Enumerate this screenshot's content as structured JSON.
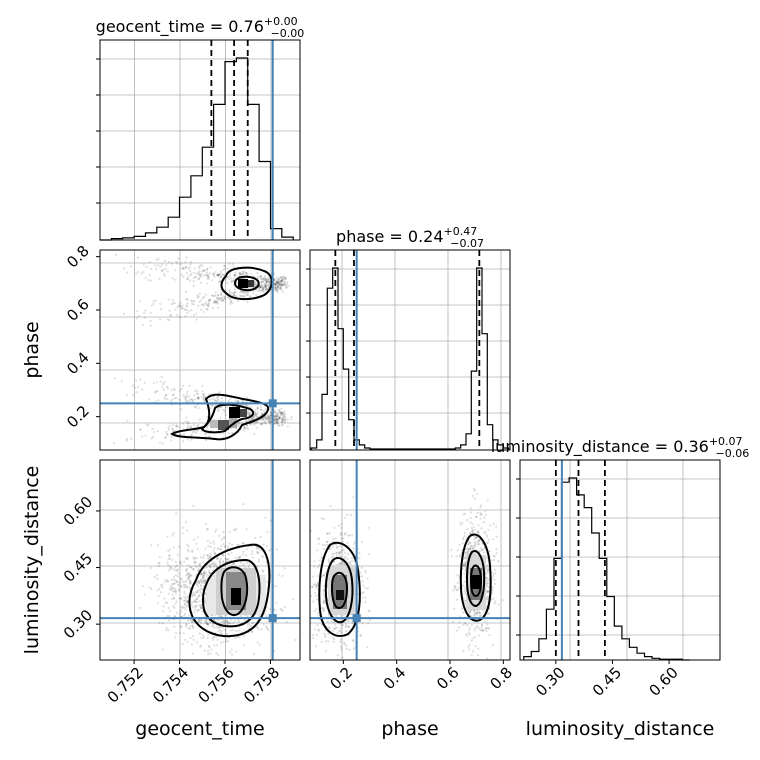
{
  "chart_data": {
    "type": "corner",
    "parameters": [
      "geocent_time",
      "phase",
      "luminosity_distance"
    ],
    "ranges": {
      "geocent_time": [
        0.7505,
        0.7593
      ],
      "phase": [
        0.075,
        0.825
      ],
      "luminosity_distance": [
        0.205,
        0.735
      ]
    },
    "ticks": {
      "geocent_time": [
        "0.752",
        "0.754",
        "0.756",
        "0.758"
      ],
      "phase": [
        "0.2",
        "0.4",
        "0.6",
        "0.8"
      ],
      "luminosity_distance": [
        "0.30",
        "0.45",
        "0.60"
      ]
    },
    "titles": {
      "geocent_time": {
        "name": "geocent_time",
        "median": "0.76",
        "plus": "+0.00",
        "minus": "−0.00"
      },
      "phase": {
        "name": "phase",
        "median": "0.24",
        "plus": "+0.47",
        "minus": "−0.07"
      },
      "luminosity_distance": {
        "name": "luminosity_distance",
        "median": "0.36",
        "plus": "+0.07",
        "minus": "−0.06"
      }
    },
    "truths": {
      "geocent_time": 0.7581,
      "phase": 0.25,
      "luminosity_distance": 0.316
    },
    "quantiles": {
      "geocent_time": [
        0.7554,
        0.7564,
        0.757
      ],
      "phase": [
        0.17,
        0.24,
        0.71
      ],
      "luminosity_distance": [
        0.3,
        0.36,
        0.43
      ]
    },
    "histograms": {
      "geocent_time": {
        "edges": [
          0.7505,
          0.751,
          0.7515,
          0.752,
          0.7525,
          0.753,
          0.7535,
          0.754,
          0.7545,
          0.755,
          0.7555,
          0.756,
          0.7565,
          0.757,
          0.7575,
          0.758,
          0.7585,
          0.759
        ],
        "counts": [
          0,
          2,
          3,
          5,
          10,
          18,
          32,
          60,
          90,
          130,
          190,
          250,
          255,
          190,
          110,
          16,
          4
        ]
      },
      "phase": {
        "edges": [
          0.08,
          0.1,
          0.12,
          0.14,
          0.16,
          0.18,
          0.2,
          0.22,
          0.24,
          0.26,
          0.28,
          0.3,
          0.32,
          0.34,
          0.36,
          0.38,
          0.4,
          0.42,
          0.44,
          0.46,
          0.48,
          0.5,
          0.52,
          0.54,
          0.56,
          0.58,
          0.6,
          0.62,
          0.64,
          0.66,
          0.68,
          0.7,
          0.72,
          0.74,
          0.76,
          0.78,
          0.8,
          0.82
        ],
        "counts": [
          2,
          10,
          55,
          160,
          180,
          120,
          80,
          30,
          10,
          5,
          2,
          1,
          1,
          1,
          1,
          1,
          1,
          1,
          1,
          1,
          1,
          1,
          1,
          1,
          1,
          1,
          1,
          2,
          5,
          16,
          78,
          180,
          115,
          25,
          10,
          5,
          2
        ]
      },
      "luminosity_distance": {
        "edges": [
          0.215,
          0.235,
          0.255,
          0.275,
          0.295,
          0.315,
          0.335,
          0.355,
          0.375,
          0.395,
          0.415,
          0.435,
          0.455,
          0.475,
          0.495,
          0.515,
          0.535,
          0.555,
          0.575,
          0.595,
          0.615,
          0.635,
          0.655
        ],
        "counts": [
          4,
          10,
          25,
          60,
          120,
          210,
          215,
          195,
          180,
          150,
          120,
          75,
          40,
          25,
          15,
          8,
          4,
          2,
          1,
          1,
          1,
          0
        ]
      }
    }
  }
}
